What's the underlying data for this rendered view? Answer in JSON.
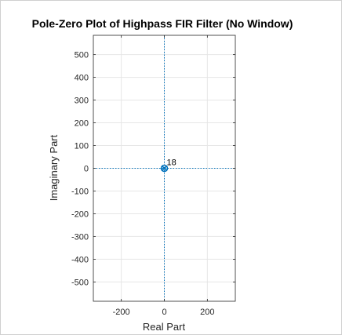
{
  "chart_data": {
    "type": "scatter",
    "title": "Pole-Zero Plot of Highpass FIR Filter (No Window)",
    "xlabel": "Real Part",
    "ylabel": "Imaginary Part",
    "xlim": [
      -330,
      330
    ],
    "ylim": [
      -585,
      585
    ],
    "xticks": [
      -200,
      0,
      200
    ],
    "xtick_labels": [
      "-200",
      "0",
      "200"
    ],
    "yticks": [
      500,
      400,
      300,
      200,
      100,
      0,
      -100,
      -200,
      -300,
      -400,
      -500
    ],
    "ytick_labels": [
      "500",
      "400",
      "300",
      "200",
      "100",
      "0",
      "-100",
      "-200",
      "-300",
      "-400",
      "-500"
    ],
    "grid": true,
    "series": [
      {
        "marker": "o",
        "color": "#0072BD",
        "points": [
          {
            "x": 0,
            "y": 0
          }
        ]
      },
      {
        "marker": "x",
        "color": "#0072BD",
        "points": [
          {
            "x": 0,
            "y": 0
          }
        ]
      }
    ],
    "annotations": [
      {
        "text": "18",
        "x": 0,
        "y": 0
      }
    ],
    "reference_lines": {
      "x": 0,
      "y": 0,
      "color": "#0072BD",
      "style": "dotted"
    }
  }
}
